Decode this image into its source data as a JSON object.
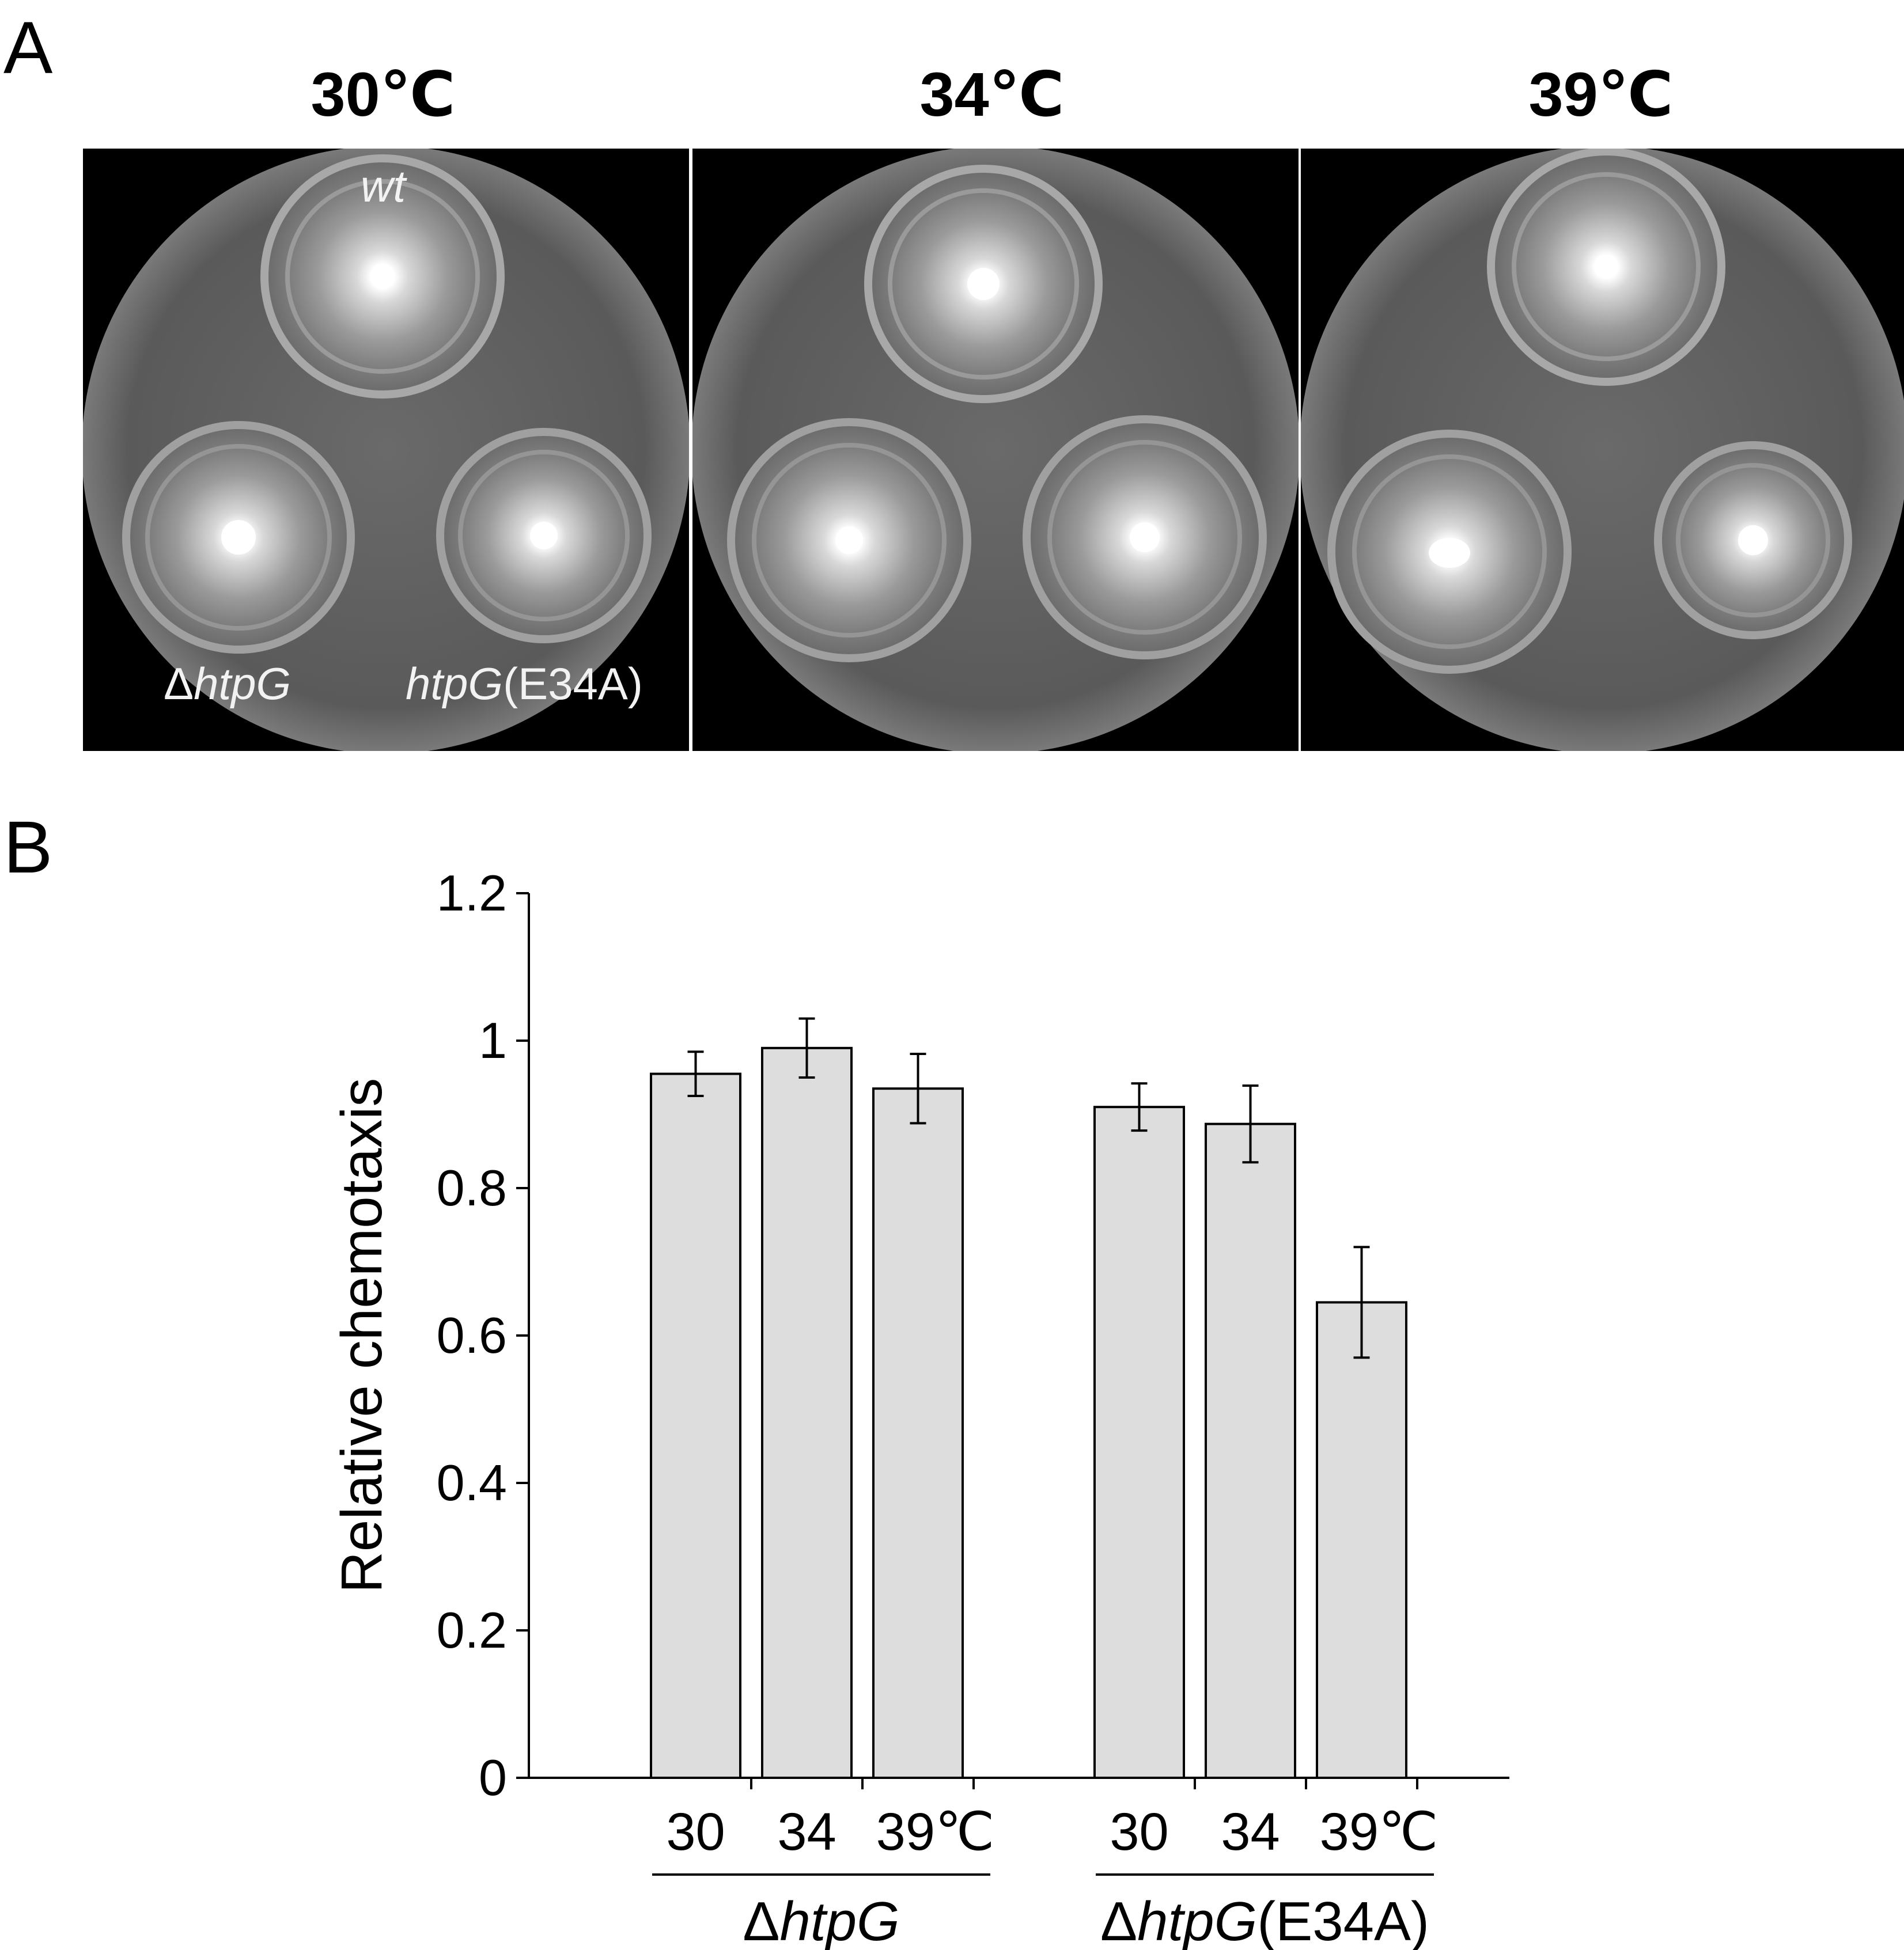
{
  "panels": {
    "a_letter": "A",
    "b_letter": "B"
  },
  "plates": {
    "titles": [
      "30℃",
      "34℃",
      "39℃"
    ],
    "labels": {
      "wt": "wt",
      "delta": "Δ",
      "htpG": "htpG",
      "mutant_suffix": "(E34A)"
    }
  },
  "chart_data": {
    "type": "bar",
    "ylabel": "Relative chemotaxis",
    "ylim": [
      0,
      1.2
    ],
    "yticks": [
      "0",
      "0.2",
      "0.4",
      "0.6",
      "0.8",
      "1",
      "1.2"
    ],
    "ytick_values": [
      0,
      0.2,
      0.4,
      0.6,
      0.8,
      1.0,
      1.2
    ],
    "groups": [
      {
        "name_prefix": "Δ",
        "name_italic": "htpG",
        "name_suffix": "",
        "categories": [
          "30",
          "34",
          "39℃"
        ],
        "values": [
          0.955,
          0.99,
          0.935
        ],
        "errors": [
          0.03,
          0.04,
          0.047
        ]
      },
      {
        "name_prefix": "Δ",
        "name_italic": "htpG",
        "name_suffix": "(E34A)",
        "categories": [
          "30",
          "34",
          "39℃"
        ],
        "values": [
          0.91,
          0.887,
          0.645
        ],
        "errors": [
          0.032,
          0.052,
          0.075
        ]
      }
    ],
    "bar_color": "#dcdddc"
  }
}
